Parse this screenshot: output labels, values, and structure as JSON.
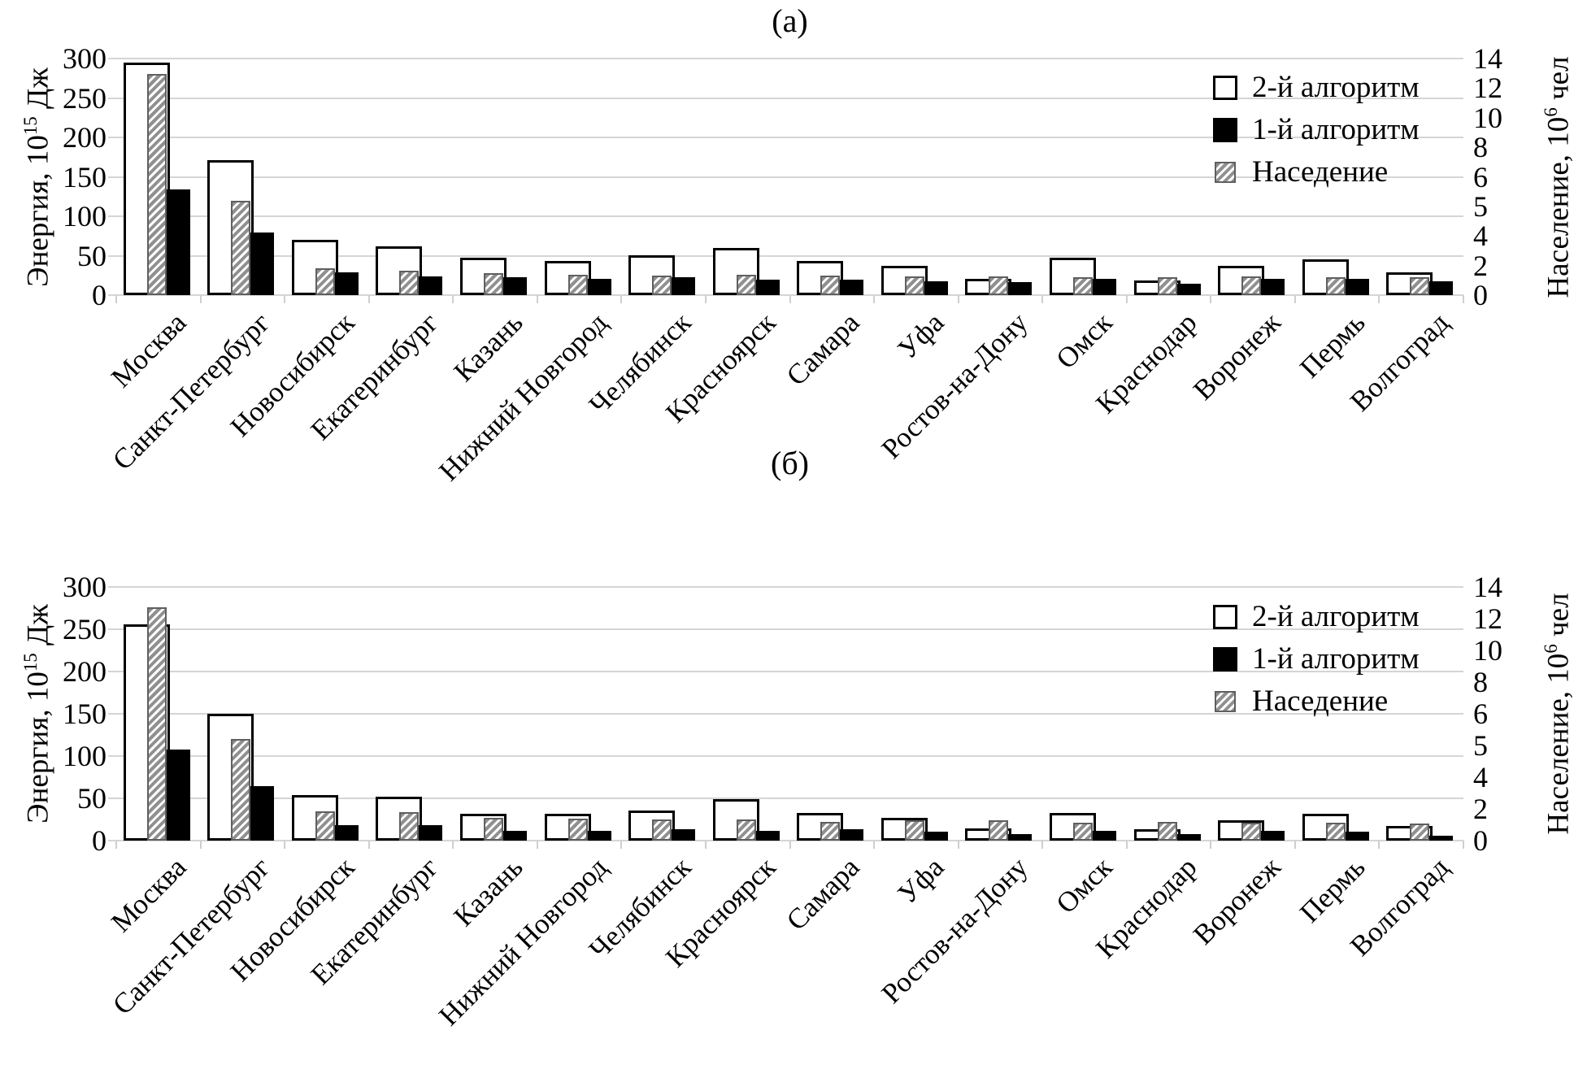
{
  "colors": {
    "background": "#ffffff",
    "text": "#000000",
    "gridline": "#d5d5d5",
    "bar_outline_border": "#000000",
    "bar_solid_fill": "#000000",
    "hatch_dark": "#909090",
    "hatch_border": "#5f5f5f"
  },
  "chart_data": [
    {
      "type": "bar",
      "title": "(а)",
      "categories": [
        "Москва",
        "Санкт-Петербург",
        "Новосибирск",
        "Екатеринбург",
        "Казань",
        "Нижний Новгород",
        "Челябинск",
        "Красноярск",
        "Самара",
        "Уфа",
        "Ростов-на-Дону",
        "Омск",
        "Краснодар",
        "Воронеж",
        "Пермь",
        "Волгоград"
      ],
      "axes": {
        "left": {
          "label": {
            "prefix": "Энергия, 10",
            "sup": "15",
            "suffix": " Дж"
          },
          "ticks": [
            "300",
            "250",
            "200",
            "150",
            "100",
            "50",
            "0"
          ],
          "min": 0,
          "max": 300
        },
        "right": {
          "label": {
            "prefix": "Население, 10",
            "sup": "6",
            "suffix": " чел"
          },
          "ticks": [
            "14",
            "12",
            "10",
            "8",
            "6",
            "5",
            "4",
            "2",
            "0"
          ],
          "min": 0,
          "max": 14
        }
      },
      "grid": true,
      "legend_position": "upper-right-inside",
      "legend": [
        "2-й алгоритм",
        "1-й алгоритм",
        "Наседение"
      ],
      "series": [
        {
          "name": "2-й алгоритм",
          "style": "outline",
          "axis": "left",
          "values": [
            295,
            171,
            70,
            62,
            47,
            43,
            50,
            60,
            43,
            37,
            21,
            47,
            19,
            37,
            45,
            29
          ]
        },
        {
          "name": "1-й алгоритм",
          "style": "solid",
          "axis": "left",
          "values": [
            134,
            79,
            29,
            24,
            23,
            21,
            23,
            20,
            20,
            18,
            17,
            21,
            14,
            21,
            21,
            18
          ]
        },
        {
          "name": "Наседение",
          "style": "hatched",
          "axis": "right",
          "values": [
            13.1,
            5.6,
            1.6,
            1.45,
            1.3,
            1.2,
            1.15,
            1.2,
            1.15,
            1.1,
            1.1,
            1.05,
            1.05,
            1.1,
            1.05,
            1.05
          ]
        }
      ]
    },
    {
      "type": "bar",
      "title": "(б)",
      "categories": [
        "Москва",
        "Санкт-Петербург",
        "Новосибирск",
        "Екатеринбург",
        "Казань",
        "Нижний Новгород",
        "Челябинск",
        "Красноярск",
        "Самара",
        "Уфа",
        "Ростов-на-Дону",
        "Омск",
        "Краснодар",
        "Воронеж",
        "Пермь",
        "Волгоград"
      ],
      "axes": {
        "left": {
          "label": {
            "prefix": "Энергия, 10",
            "sup": "15",
            "suffix": " Дж"
          },
          "ticks": [
            "300",
            "250",
            "200",
            "150",
            "100",
            "50",
            "0"
          ],
          "min": 0,
          "max": 300
        },
        "right": {
          "label": {
            "prefix": "Население, 10",
            "sup": "6",
            "suffix": " чел"
          },
          "ticks": [
            "14",
            "12",
            "10",
            "8",
            "6",
            "5",
            "4",
            "2",
            "0"
          ],
          "min": 0,
          "max": 14
        }
      },
      "grid": true,
      "legend_position": "upper-right-inside",
      "legend": [
        "2-й алгоритм",
        "1-й алгоритм",
        "Наседение"
      ],
      "series": [
        {
          "name": "2-й алгоритм",
          "style": "outline",
          "axis": "left",
          "values": [
            256,
            150,
            54,
            52,
            32,
            32,
            36,
            49,
            33,
            27,
            14,
            33,
            13,
            24,
            32,
            17
          ]
        },
        {
          "name": "1-й алгоритм",
          "style": "solid",
          "axis": "left",
          "values": [
            108,
            64,
            18,
            18,
            12,
            12,
            13,
            12,
            13,
            11,
            8,
            12,
            8,
            12,
            11,
            6
          ]
        },
        {
          "name": "Наседение",
          "style": "hatched",
          "axis": "right",
          "values": [
            12.9,
            5.6,
            1.6,
            1.55,
            1.25,
            1.2,
            1.15,
            1.15,
            1.05,
            1.1,
            1.1,
            1.0,
            1.05,
            1.0,
            1.0,
            0.95
          ]
        }
      ]
    }
  ]
}
